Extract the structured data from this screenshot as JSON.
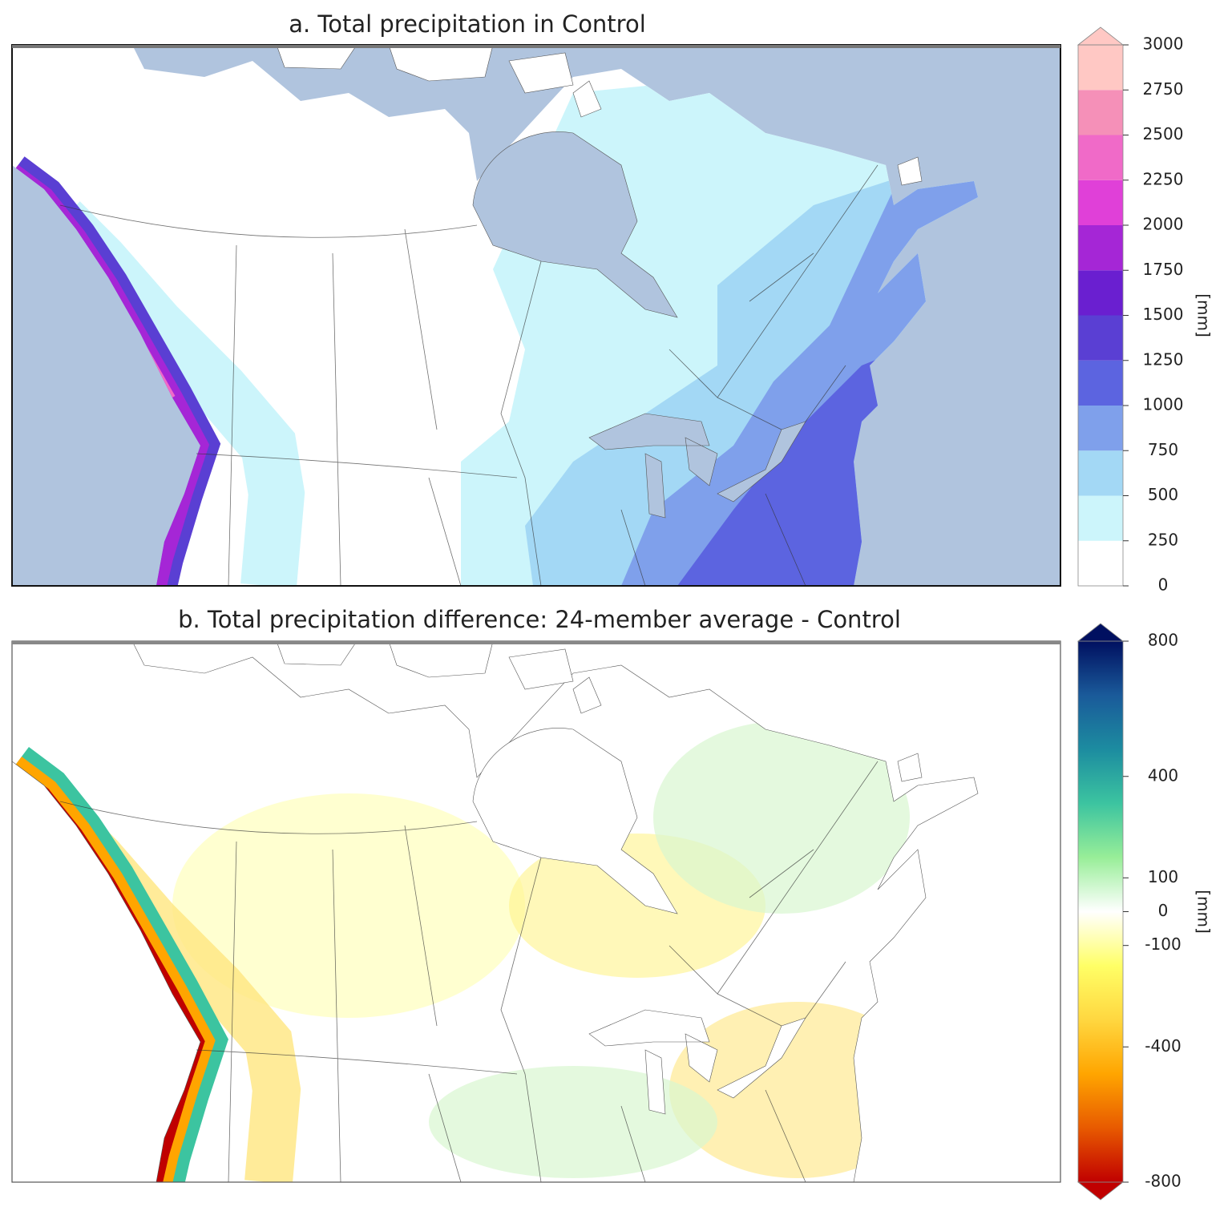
{
  "chart_data": [
    {
      "type": "map",
      "title": "a. Total precipitation in Control",
      "colorbar": {
        "label": "[mm]",
        "lim": [
          0,
          3000
        ],
        "ticks": [
          0,
          250,
          500,
          750,
          1000,
          1250,
          1500,
          1750,
          2000,
          2250,
          2500,
          2750,
          3000
        ],
        "colors": [
          "#ffffff",
          "#ccf5fb",
          "#a3d8f5",
          "#7fa0eb",
          "#5c64e0",
          "#5a3fd3",
          "#6a1fd0",
          "#a526d6",
          "#e040d8",
          "#f06ac8",
          "#f590b8",
          "#ffc8c4"
        ],
        "extend": "max",
        "extend_color": "#ffc8c4",
        "style": "discrete"
      }
    },
    {
      "type": "map",
      "title": "b. Total precipitation difference: 24-member average - Control",
      "colorbar": {
        "label": "[mm]",
        "lim": [
          -800,
          800
        ],
        "ticks": [
          -800,
          -400,
          -100,
          0,
          100,
          400,
          800
        ],
        "colors": [
          "#c00000",
          "#e85a00",
          "#ffa500",
          "#ffd740",
          "#ffff66",
          "#ffffff",
          "#98ee98",
          "#3cc4a0",
          "#1c8ca0",
          "#1a5a9a",
          "#001060"
        ],
        "extend": "both",
        "style": "continuous"
      }
    }
  ]
}
